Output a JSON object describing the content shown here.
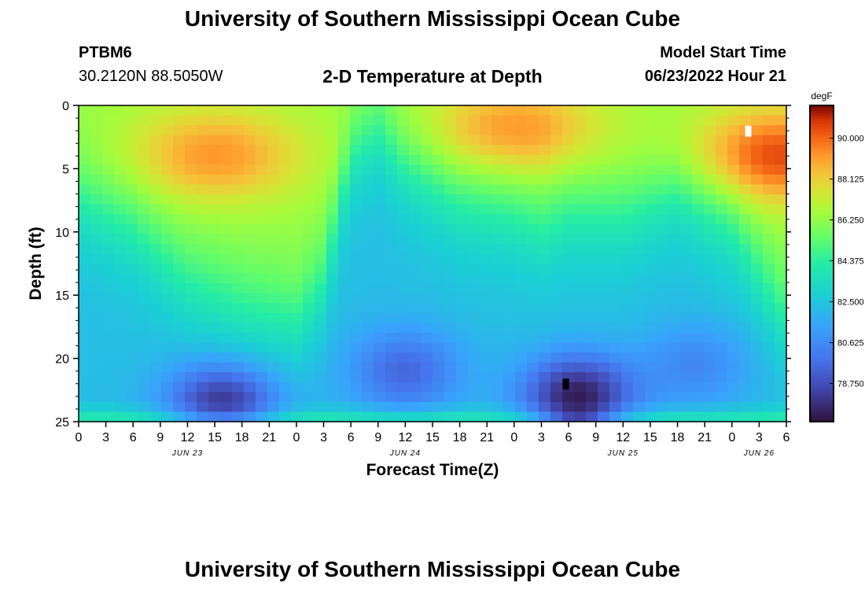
{
  "page": {
    "title_top": "University of Southern Mississippi Ocean Cube",
    "title_bottom": "University of Southern Mississippi Ocean Cube",
    "station_id": "PTBM6",
    "station_coords": "30.2120N  88.5050W",
    "plot_title": "2-D Temperature at Depth",
    "model_start_label": "Model Start Time",
    "model_start_value": "06/23/2022 Hour 21"
  },
  "chart_data": {
    "type": "heatmap",
    "title": "2-D Temperature at Depth",
    "xlabel": "Forecast Time(Z)",
    "ylabel": "Depth (ft)",
    "x_range_hours": [
      0,
      78
    ],
    "y_range_ft": [
      0,
      25
    ],
    "y_ticks": [
      0,
      5,
      10,
      15,
      20,
      25
    ],
    "x_tick_labels": [
      "0",
      "3",
      "6",
      "9",
      "12",
      "15",
      "18",
      "21",
      "0",
      "3",
      "6",
      "9",
      "12",
      "15",
      "18",
      "21",
      "0",
      "3",
      "6",
      "9",
      "12",
      "15",
      "18",
      "21",
      "0",
      "3",
      "6"
    ],
    "date_labels": [
      {
        "label": "JUN 23",
        "hour": 12
      },
      {
        "label": "JUN 24",
        "hour": 36
      },
      {
        "label": "JUN 25",
        "hour": 60
      },
      {
        "label": "JUN 26",
        "hour": 75
      }
    ],
    "colorbar": {
      "unit": "degF",
      "min": 77.0,
      "max": 91.5,
      "tick_values": [
        90.0,
        88.125,
        86.25,
        84.375,
        82.5,
        80.625,
        78.75
      ],
      "tick_labels": [
        "90.000",
        "88.125",
        "86.250",
        "84.375",
        "82.500",
        "80.625",
        "78.750"
      ]
    },
    "thermocline_depth_ft": [
      {
        "hour": 0,
        "depth": 7.5
      },
      {
        "hour": 6,
        "depth": 10
      },
      {
        "hour": 12,
        "depth": 14
      },
      {
        "hour": 18,
        "depth": 16
      },
      {
        "hour": 24,
        "depth": 17
      },
      {
        "hour": 27,
        "depth": 14
      },
      {
        "hour": 30,
        "depth": 4
      },
      {
        "hour": 33,
        "depth": 2
      },
      {
        "hour": 36,
        "depth": 5
      },
      {
        "hour": 42,
        "depth": 8
      },
      {
        "hour": 48,
        "depth": 9
      },
      {
        "hour": 51,
        "depth": 10
      },
      {
        "hour": 54,
        "depth": 9
      },
      {
        "hour": 60,
        "depth": 9
      },
      {
        "hour": 66,
        "depth": 7
      },
      {
        "hour": 72,
        "depth": 10
      },
      {
        "hour": 78,
        "depth": 17
      }
    ],
    "warm_cores": [
      {
        "hour": 15,
        "depth": 4,
        "temp": 89.3
      },
      {
        "hour": 48,
        "depth": 2,
        "temp": 89.5
      },
      {
        "hour": 77,
        "depth": 4,
        "temp": 90.5
      }
    ],
    "cold_cores": [
      {
        "hour": 16,
        "depth": 23.5,
        "temp": 77.8
      },
      {
        "hour": 36,
        "depth": 21,
        "temp": 79.5
      },
      {
        "hour": 55,
        "depth": 23,
        "temp": 77.3
      },
      {
        "hour": 68,
        "depth": 20.5,
        "temp": 80.5
      }
    ]
  }
}
